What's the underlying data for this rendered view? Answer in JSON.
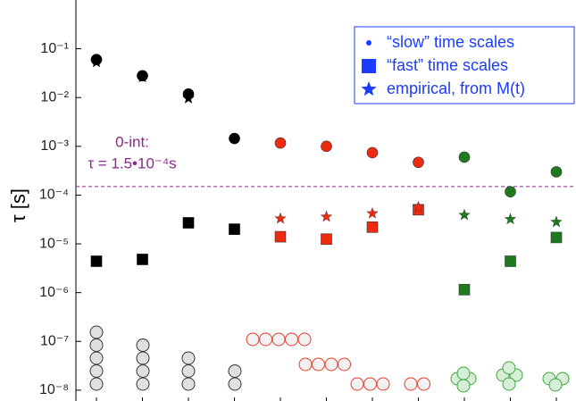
{
  "chart_data": {
    "type": "scatter",
    "ylabel": "τ [s]",
    "log_y": true,
    "ylim": [
      6e-09,
      1
    ],
    "yticks": [
      {
        "value": 0.1,
        "label": "10⁻¹"
      },
      {
        "value": 0.01,
        "label": "10⁻²"
      },
      {
        "value": 0.001,
        "label": "10⁻³"
      },
      {
        "value": 0.0001,
        "label": "10⁻⁴"
      },
      {
        "value": 1e-05,
        "label": "10⁻⁵"
      },
      {
        "value": 1e-06,
        "label": "10⁻⁶"
      },
      {
        "value": 1e-07,
        "label": "10⁻⁷"
      },
      {
        "value": 1e-08,
        "label": "10⁻⁸"
      }
    ],
    "categories": [
      null,
      null,
      null,
      null,
      null,
      null,
      null,
      null,
      null,
      null,
      null
    ],
    "point_colors": [
      "#000000",
      "#000000",
      "#000000",
      "#000000",
      "#ee2a10",
      "#ee2a10",
      "#ee2a10",
      "#ee2a10",
      "#1f7a1f",
      "#1f7a1f",
      "#1f7a1f"
    ],
    "legend_position": "upper right",
    "series": [
      {
        "name": "“slow” time scales",
        "marker": "circle",
        "color": "#1a3cff",
        "values": [
          0.06,
          0.028,
          0.0118,
          0.00145,
          0.00117,
          0.001,
          0.00074,
          0.00047,
          0.0006,
          0.000117,
          0.0003
        ]
      },
      {
        "name": "“fast” time scales",
        "marker": "square",
        "color": "#1a3cff",
        "values": [
          4.4e-06,
          4.8e-06,
          2.7e-05,
          2e-05,
          1.4e-05,
          1.25e-05,
          2.2e-05,
          5e-05,
          1.15e-06,
          4.4e-06,
          1.35e-05
        ]
      },
      {
        "name": "empirical, from M(t)",
        "marker": "star",
        "color": "#1a3cff",
        "values": [
          0.053,
          0.026,
          0.0096,
          null,
          3.3e-05,
          3.6e-05,
          4.2e-05,
          5.7e-05,
          3.9e-05,
          3.2e-05,
          2.8e-05
        ]
      }
    ],
    "threshold": {
      "value": 0.00015,
      "color": "#8a2a8a",
      "label_line1": "0-int:",
      "label_line2": "τ = 1.5•10⁻⁴s"
    }
  }
}
